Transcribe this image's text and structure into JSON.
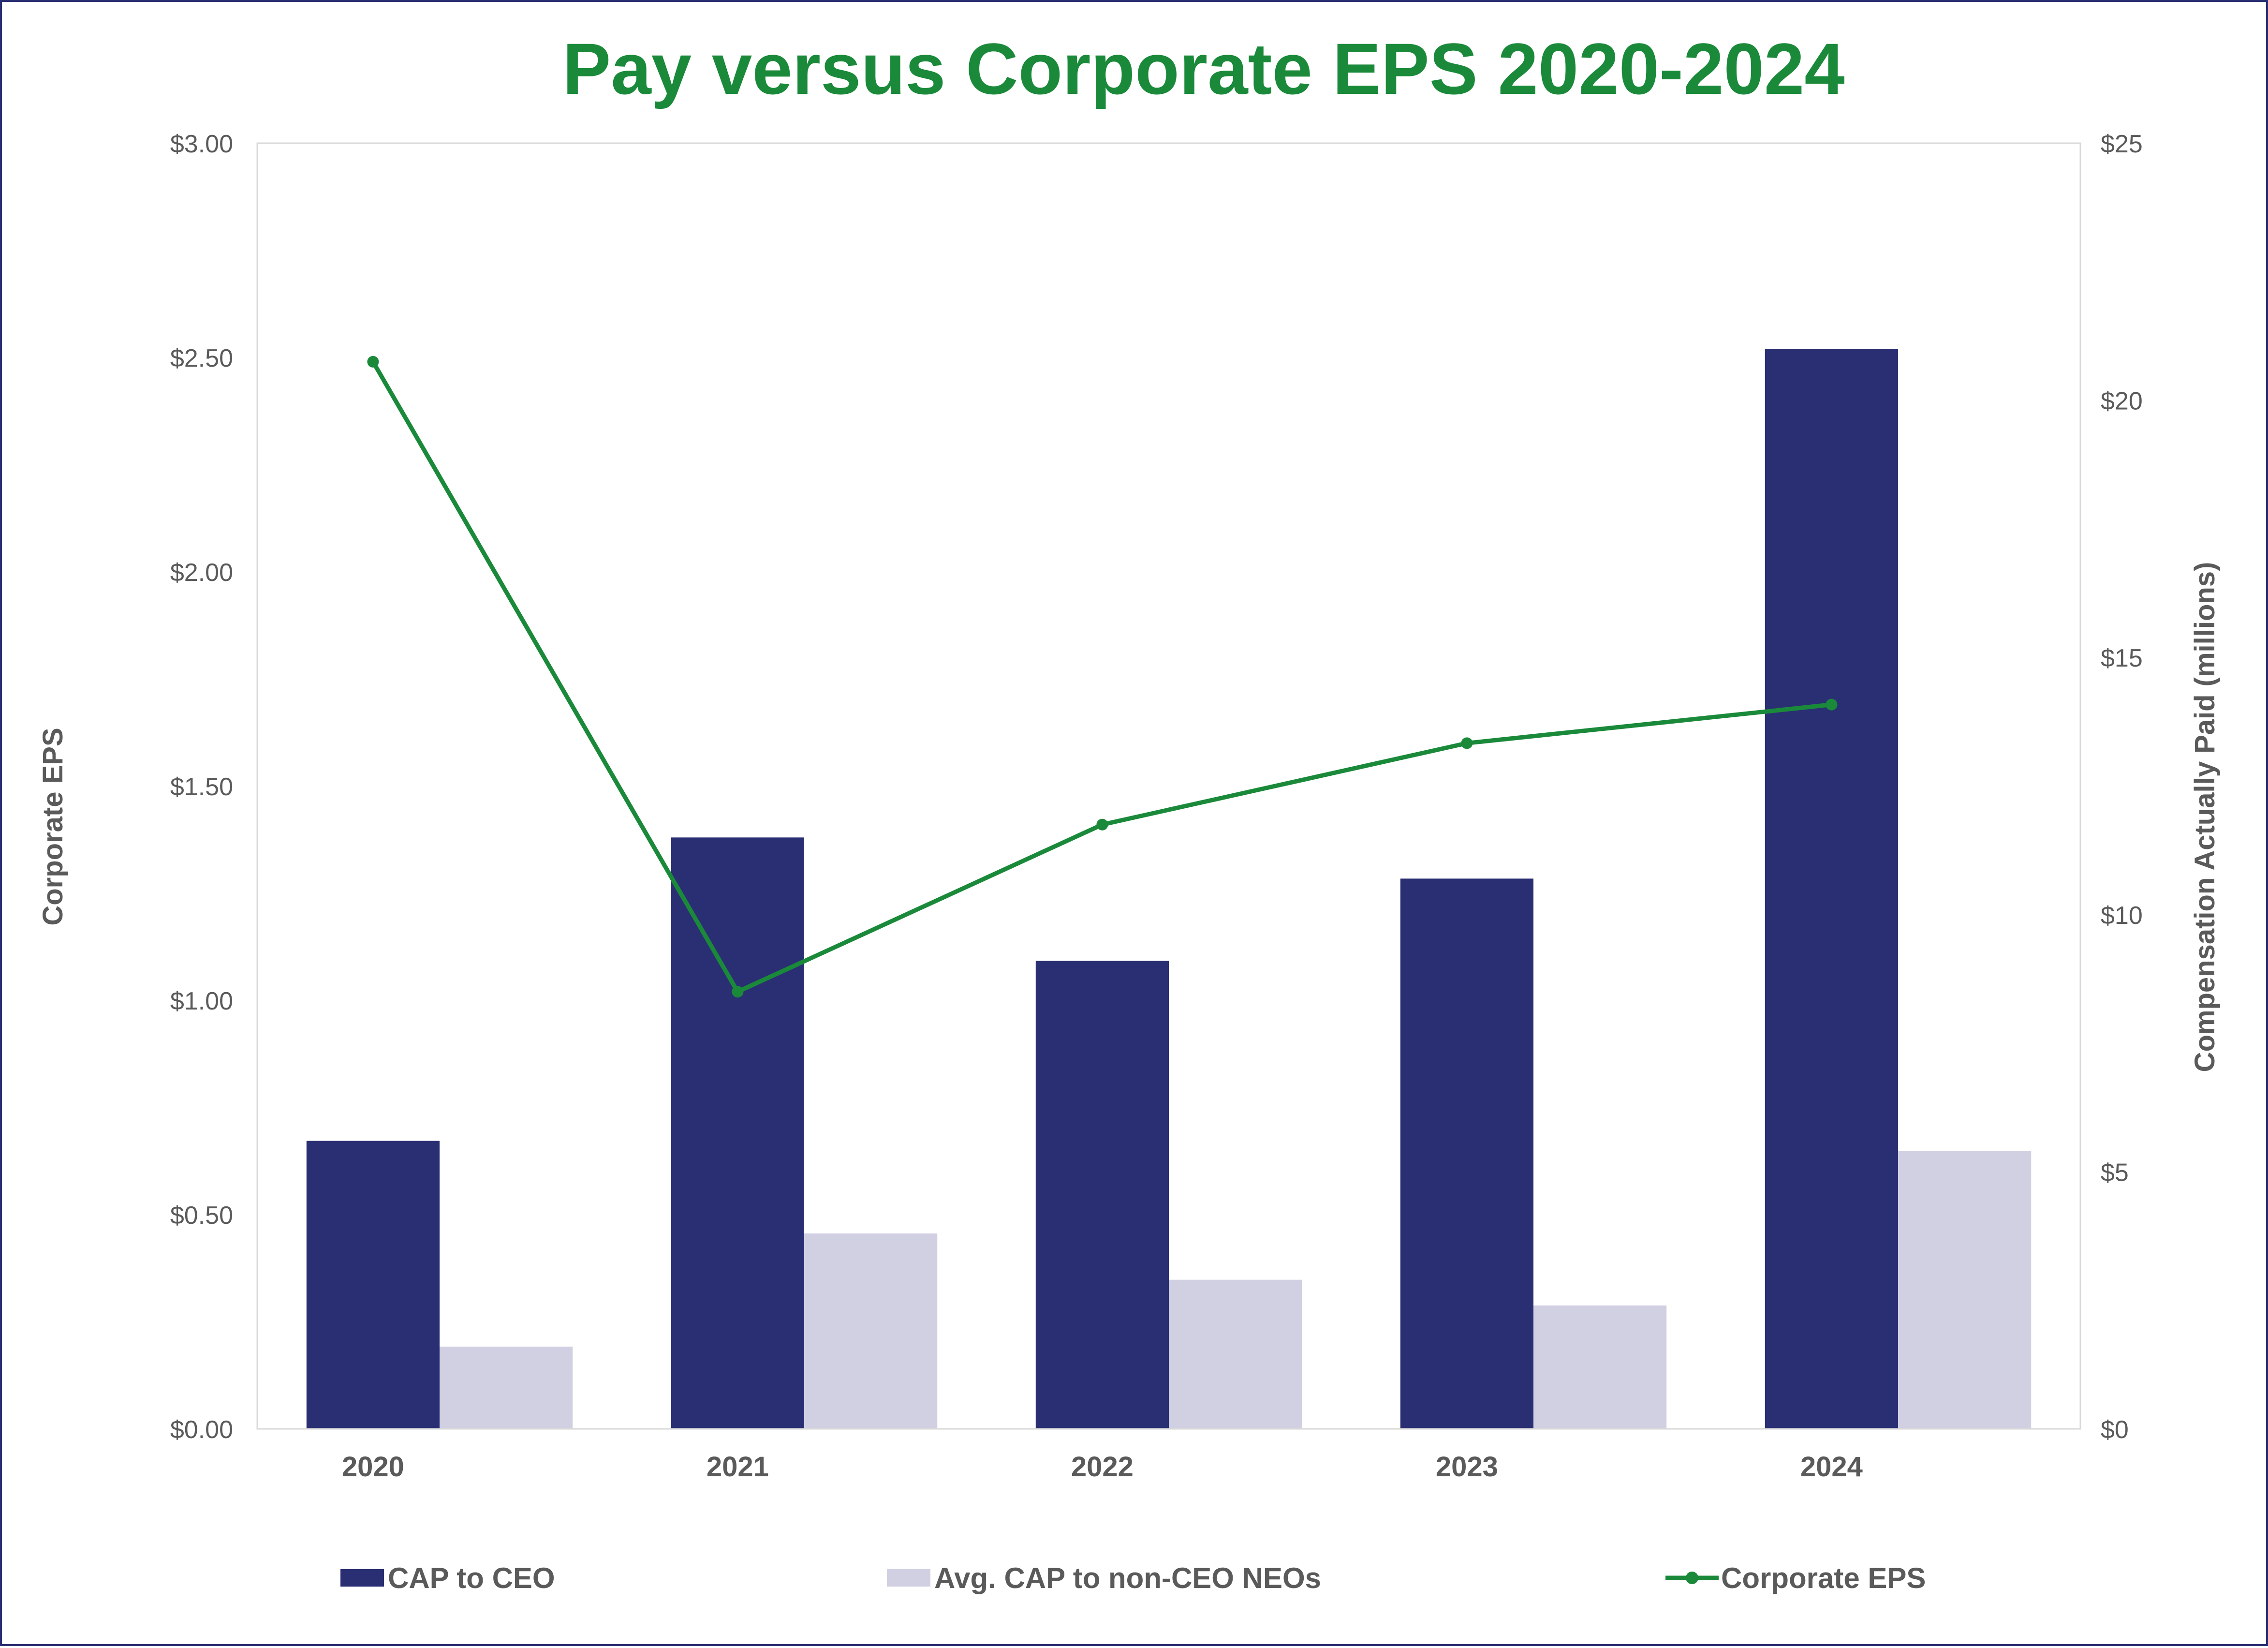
{
  "chart_data": {
    "type": "bar",
    "title": "Pay versus Corporate EPS 2020-2024",
    "categories": [
      "2020",
      "2021",
      "2022",
      "2023",
      "2024"
    ],
    "series": [
      {
        "name": "CAP to CEO",
        "axis": "right",
        "kind": "bar",
        "values": [
          5.6,
          11.5,
          9.1,
          10.7,
          21.0
        ]
      },
      {
        "name": "Avg. CAP to non-CEO NEOs",
        "axis": "right",
        "kind": "bar",
        "values": [
          1.6,
          3.8,
          2.9,
          2.4,
          5.4
        ]
      },
      {
        "name": "Corporate EPS",
        "axis": "left",
        "kind": "line",
        "values": [
          2.49,
          1.02,
          1.41,
          1.6,
          1.69
        ]
      }
    ],
    "ylabel_left": "Corporate EPS",
    "ylabel_right": "Compensation Actually Paid (millions)",
    "ylim_left": [
      0,
      3
    ],
    "ylim_right": [
      0,
      25
    ],
    "yticks_left": [
      "$0.00",
      "$0.50",
      "$1.00",
      "$1.50",
      "$2.00",
      "$2.50",
      "$3.00"
    ],
    "yticks_right": [
      "$0",
      "$5",
      "$10",
      "$15",
      "$20",
      "$25"
    ],
    "legend_position": "bottom",
    "colors": {
      "title": "#1a8a3a",
      "ceo_bar": "#2a2f73",
      "neo_bar": "#d1d0e3",
      "eps_line": "#1a8a3a",
      "axis_text": "#5a5a5a",
      "frame": "#2a2f73"
    }
  }
}
